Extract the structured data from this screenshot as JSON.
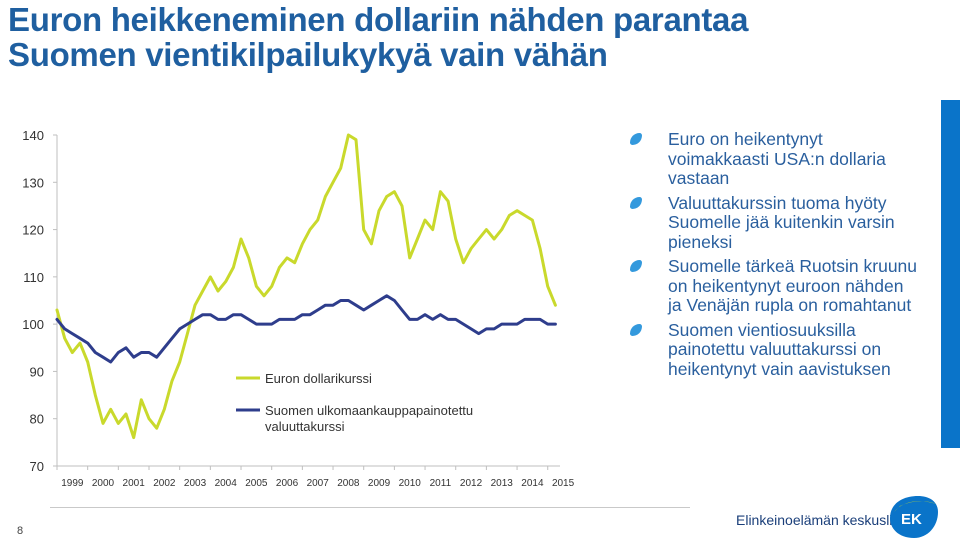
{
  "title_lines": [
    "Euron heikkeneminen dollariin nähden parantaa",
    "Suomen vientikilpailukykyä vain vähän"
  ],
  "bullets": [
    "Euro on heikentynyt voimakkaasti USA:n dollaria  vastaan",
    "Valuuttakurssin tuoma hyöty Suomelle jää kuitenkin varsin pieneksi",
    "Suomelle tärkeä Ruotsin kruunu on heikentynyt euroon nähden ja Venäjän rupla on romahtanut",
    "Suomen vientiosuuksilla painotettu valuuttakurssi on heikentynyt vain aavistuksen"
  ],
  "page_number": "8",
  "footer_org": "Elinkeinoelämän keskusliitto",
  "logo_text": "EK",
  "colors": {
    "title": "#1f5fa0",
    "bullet_text": "#2a5f9e",
    "bullet_marker": "#3399dd",
    "euro_line": "#c9d92c",
    "finland_line": "#2e3d8c",
    "side_bar": "#0a74c9"
  },
  "chart_data": {
    "type": "line",
    "ylim": [
      70,
      140
    ],
    "yticks": [
      70,
      80,
      90,
      100,
      110,
      120,
      130,
      140
    ],
    "xlim": [
      1999,
      2015.4
    ],
    "xticks": [
      "1999",
      "2000",
      "2001",
      "2002",
      "2003",
      "2004",
      "2005",
      "2006",
      "2007",
      "2008",
      "2009",
      "2010",
      "2011",
      "2012",
      "2013",
      "2014",
      "2015"
    ],
    "grid": false,
    "legend_position": "lower-center",
    "series": [
      {
        "name": "Euron dollarikurssi",
        "color": "#c9d92c",
        "x": [
          1999.0,
          1999.25,
          1999.5,
          1999.75,
          2000.0,
          2000.25,
          2000.5,
          2000.75,
          2001.0,
          2001.25,
          2001.5,
          2001.75,
          2002.0,
          2002.25,
          2002.5,
          2002.75,
          2003.0,
          2003.25,
          2003.5,
          2003.75,
          2004.0,
          2004.25,
          2004.5,
          2004.75,
          2005.0,
          2005.25,
          2005.5,
          2005.75,
          2006.0,
          2006.25,
          2006.5,
          2006.75,
          2007.0,
          2007.25,
          2007.5,
          2007.75,
          2008.0,
          2008.25,
          2008.5,
          2008.75,
          2009.0,
          2009.25,
          2009.5,
          2009.75,
          2010.0,
          2010.25,
          2010.5,
          2010.75,
          2011.0,
          2011.25,
          2011.5,
          2011.75,
          2012.0,
          2012.25,
          2012.5,
          2012.75,
          2013.0,
          2013.25,
          2013.5,
          2013.75,
          2014.0,
          2014.25,
          2014.5,
          2014.75,
          2015.0,
          2015.25
        ],
        "values": [
          103,
          97,
          94,
          96,
          92,
          85,
          79,
          82,
          79,
          81,
          76,
          84,
          80,
          78,
          82,
          88,
          92,
          98,
          104,
          107,
          110,
          107,
          109,
          112,
          118,
          114,
          108,
          106,
          108,
          112,
          114,
          113,
          117,
          120,
          122,
          127,
          130,
          133,
          140,
          139,
          120,
          117,
          124,
          127,
          128,
          125,
          114,
          118,
          122,
          120,
          128,
          126,
          118,
          113,
          116,
          118,
          120,
          118,
          120,
          123,
          124,
          123,
          122,
          116,
          108,
          104
        ]
      },
      {
        "name": "Suomen ulkomaankauppapainotettu valuuttakurssi",
        "color": "#2e3d8c",
        "x": [
          1999.0,
          1999.25,
          1999.5,
          1999.75,
          2000.0,
          2000.25,
          2000.5,
          2000.75,
          2001.0,
          2001.25,
          2001.5,
          2001.75,
          2002.0,
          2002.25,
          2002.5,
          2002.75,
          2003.0,
          2003.25,
          2003.5,
          2003.75,
          2004.0,
          2004.25,
          2004.5,
          2004.75,
          2005.0,
          2005.25,
          2005.5,
          2005.75,
          2006.0,
          2006.25,
          2006.5,
          2006.75,
          2007.0,
          2007.25,
          2007.5,
          2007.75,
          2008.0,
          2008.25,
          2008.5,
          2008.75,
          2009.0,
          2009.25,
          2009.5,
          2009.75,
          2010.0,
          2010.25,
          2010.5,
          2010.75,
          2011.0,
          2011.25,
          2011.5,
          2011.75,
          2012.0,
          2012.25,
          2012.5,
          2012.75,
          2013.0,
          2013.25,
          2013.5,
          2013.75,
          2014.0,
          2014.25,
          2014.5,
          2014.75,
          2015.0,
          2015.25
        ],
        "values": [
          101,
          99,
          98,
          97,
          96,
          94,
          93,
          92,
          94,
          95,
          93,
          94,
          94,
          93,
          95,
          97,
          99,
          100,
          101,
          102,
          102,
          101,
          101,
          102,
          102,
          101,
          100,
          100,
          100,
          101,
          101,
          101,
          102,
          102,
          103,
          104,
          104,
          105,
          105,
          104,
          103,
          104,
          105,
          106,
          105,
          103,
          101,
          101,
          102,
          101,
          102,
          101,
          101,
          100,
          99,
          98,
          99,
          99,
          100,
          100,
          100,
          101,
          101,
          101,
          100,
          100
        ]
      }
    ]
  }
}
